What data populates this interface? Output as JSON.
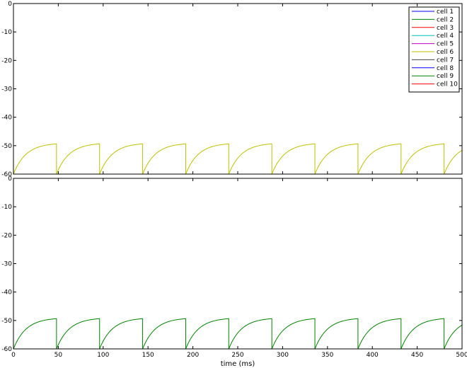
{
  "chart_data": [
    {
      "type": "line",
      "panel": "top",
      "xlabel": "",
      "ylabel": "",
      "xlim": [
        0,
        500
      ],
      "ylim": [
        -60,
        0
      ],
      "xticks": [
        0,
        50,
        100,
        150,
        200,
        250,
        300,
        350,
        400,
        450,
        500
      ],
      "xtick_labels_visible": false,
      "yticks": [
        -60,
        -50,
        -40,
        -30,
        -20,
        -10,
        0
      ],
      "ytick_labels": [
        "-60",
        "-50",
        "-40",
        "-30",
        "-20",
        "-10",
        "0"
      ],
      "grid": false,
      "legend": {
        "placement": "top-right",
        "entries": [
          {
            "name": "cell 1",
            "color": "#0000ff"
          },
          {
            "name": "cell 2",
            "color": "#008000"
          },
          {
            "name": "cell 3",
            "color": "#ff0000"
          },
          {
            "name": "cell 4",
            "color": "#00bfbf"
          },
          {
            "name": "cell 5",
            "color": "#bf00bf"
          },
          {
            "name": "cell 6",
            "color": "#bfbf00"
          },
          {
            "name": "cell 7",
            "color": "#404040"
          },
          {
            "name": "cell 8",
            "color": "#0000ff"
          },
          {
            "name": "cell 9",
            "color": "#008000"
          },
          {
            "name": "cell 10",
            "color": "#ff0000"
          }
        ]
      },
      "series": [
        {
          "name": "cell 6",
          "color": "#bfbf00",
          "waveform": "sawtooth-recovery",
          "initial_value": 0,
          "reset_value": -60,
          "asymptote": -49,
          "tau_ms": 14,
          "spike_times_ms": [
            0,
            48,
            96,
            144,
            192,
            240,
            288,
            336,
            384,
            432,
            480
          ]
        }
      ]
    },
    {
      "type": "line",
      "panel": "bottom",
      "xlabel": "time (ms)",
      "ylabel": "",
      "xlim": [
        0,
        500
      ],
      "ylim": [
        -60,
        0
      ],
      "xticks": [
        0,
        50,
        100,
        150,
        200,
        250,
        300,
        350,
        400,
        450,
        500
      ],
      "xtick_labels": [
        "0",
        "50",
        "100",
        "150",
        "200",
        "250",
        "300",
        "350",
        "400",
        "450",
        "500"
      ],
      "yticks": [
        -60,
        -50,
        -40,
        -30,
        -20,
        -10,
        0
      ],
      "ytick_labels": [
        "-60",
        "-50",
        "-40",
        "-30",
        "-20",
        "-10",
        "0"
      ],
      "grid": false,
      "series": [
        {
          "color": "#008000",
          "waveform": "sawtooth-recovery",
          "initial_value": 0,
          "reset_value": -60,
          "asymptote": -49,
          "tau_ms": 14,
          "spike_times_ms": [
            0,
            48,
            96,
            144,
            192,
            240,
            288,
            336,
            384,
            432,
            480
          ]
        }
      ]
    }
  ]
}
